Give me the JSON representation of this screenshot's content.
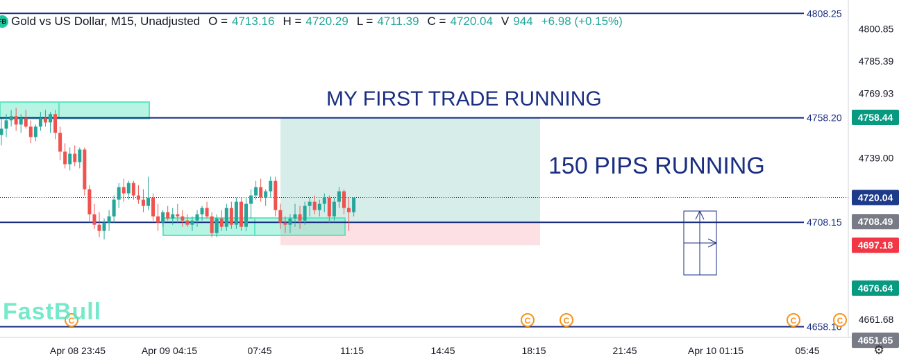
{
  "header": {
    "logo": "FB",
    "title": "Gold vs US Dollar, M15, Unadjusted",
    "o_label": "O =",
    "o": "4713.16",
    "h_label": "H =",
    "h": "4720.29",
    "l_label": "L =",
    "l": "4711.39",
    "c_label": "C =",
    "c": "4720.04",
    "v_label": "V",
    "v": "944",
    "change": "+6.98 (+0.15%)"
  },
  "annotations": {
    "trade": "MY FIRST TRADE RUNNING",
    "pips": "150 PIPS RUNNING"
  },
  "watermark": "FastBull",
  "colors": {
    "up": "#26a69a",
    "down": "#ef5350",
    "level_line": "#1a2e82",
    "profit_zone": "#d6ede9",
    "loss_zone": "#fde0e3",
    "zone_box": "#5fe6c2",
    "last_price_badge": "#1e3b8a",
    "stop_badge": "#f23645",
    "target_badge": "#089981"
  },
  "chart_data": {
    "type": "candlestick",
    "title": "Gold vs US Dollar, M15, Unadjusted",
    "xlabel": "",
    "ylabel": "",
    "ylim": [
      4655,
      4812
    ],
    "grid": false,
    "x_ticks": [
      "Apr 08 23:45",
      "Apr 09 04:15",
      "07:45",
      "11:15",
      "14:45",
      "18:15",
      "21:45",
      "Apr 10 01:15",
      "05:45"
    ],
    "y_ticks": [
      4800.85,
      4785.39,
      4769.93,
      4739.0,
      4661.68
    ],
    "last_price": 4720.04,
    "levels": [
      {
        "label": "4808.25",
        "value": 4808.25
      },
      {
        "label": "4758.20",
        "value": 4758.2
      },
      {
        "label": "4708.15",
        "value": 4708.15
      },
      {
        "label": "4658.10",
        "value": 4658.1
      }
    ],
    "badges": [
      {
        "label": "4758.44",
        "value": 4758.44,
        "kind": "target"
      },
      {
        "label": "4720.04",
        "value": 4720.04,
        "kind": "last"
      },
      {
        "label": "4708.49",
        "value": 4708.49,
        "kind": "gray"
      },
      {
        "label": "4697.18",
        "value": 4697.18,
        "kind": "stop"
      },
      {
        "label": "4676.64",
        "value": 4676.64,
        "kind": "target"
      },
      {
        "label": "4651.65",
        "value": 4651.65,
        "kind": "gray"
      }
    ],
    "position": {
      "entry": 4708.15,
      "target": 4758.2,
      "stop": 4697.18
    },
    "candles": [
      {
        "o": 4750,
        "h": 4758,
        "l": 4745,
        "c": 4753
      },
      {
        "o": 4753,
        "h": 4760,
        "l": 4749,
        "c": 4757
      },
      {
        "o": 4757,
        "h": 4762,
        "l": 4754,
        "c": 4759
      },
      {
        "o": 4759,
        "h": 4763,
        "l": 4752,
        "c": 4755
      },
      {
        "o": 4755,
        "h": 4760,
        "l": 4751,
        "c": 4758
      },
      {
        "o": 4758,
        "h": 4762,
        "l": 4753,
        "c": 4754
      },
      {
        "o": 4754,
        "h": 4757,
        "l": 4746,
        "c": 4749
      },
      {
        "o": 4749,
        "h": 4755,
        "l": 4747,
        "c": 4754
      },
      {
        "o": 4754,
        "h": 4761,
        "l": 4752,
        "c": 4758
      },
      {
        "o": 4758,
        "h": 4762,
        "l": 4754,
        "c": 4756
      },
      {
        "o": 4756,
        "h": 4761,
        "l": 4751,
        "c": 4760
      },
      {
        "o": 4760,
        "h": 4762,
        "l": 4748,
        "c": 4751
      },
      {
        "o": 4751,
        "h": 4754,
        "l": 4738,
        "c": 4742
      },
      {
        "o": 4742,
        "h": 4746,
        "l": 4734,
        "c": 4736
      },
      {
        "o": 4736,
        "h": 4744,
        "l": 4733,
        "c": 4741
      },
      {
        "o": 4741,
        "h": 4745,
        "l": 4735,
        "c": 4737
      },
      {
        "o": 4737,
        "h": 4744,
        "l": 4734,
        "c": 4743
      },
      {
        "o": 4743,
        "h": 4744,
        "l": 4721,
        "c": 4724
      },
      {
        "o": 4724,
        "h": 4726,
        "l": 4708,
        "c": 4712
      },
      {
        "o": 4712,
        "h": 4717,
        "l": 4705,
        "c": 4707
      },
      {
        "o": 4707,
        "h": 4713,
        "l": 4701,
        "c": 4704
      },
      {
        "o": 4704,
        "h": 4710,
        "l": 4700,
        "c": 4708
      },
      {
        "o": 4708,
        "h": 4714,
        "l": 4704,
        "c": 4711
      },
      {
        "o": 4711,
        "h": 4721,
        "l": 4708,
        "c": 4719
      },
      {
        "o": 4719,
        "h": 4727,
        "l": 4715,
        "c": 4725
      },
      {
        "o": 4725,
        "h": 4729,
        "l": 4718,
        "c": 4722
      },
      {
        "o": 4722,
        "h": 4728,
        "l": 4719,
        "c": 4727
      },
      {
        "o": 4727,
        "h": 4728,
        "l": 4719,
        "c": 4721
      },
      {
        "o": 4721,
        "h": 4726,
        "l": 4717,
        "c": 4719
      },
      {
        "o": 4719,
        "h": 4724,
        "l": 4713,
        "c": 4716
      },
      {
        "o": 4716,
        "h": 4730,
        "l": 4714,
        "c": 4720
      },
      {
        "o": 4720,
        "h": 4722,
        "l": 4709,
        "c": 4711
      },
      {
        "o": 4711,
        "h": 4717,
        "l": 4704,
        "c": 4708
      },
      {
        "o": 4708,
        "h": 4714,
        "l": 4706,
        "c": 4713
      },
      {
        "o": 4713,
        "h": 4716,
        "l": 4709,
        "c": 4710
      },
      {
        "o": 4710,
        "h": 4715,
        "l": 4707,
        "c": 4712
      },
      {
        "o": 4712,
        "h": 4717,
        "l": 4708,
        "c": 4711
      },
      {
        "o": 4711,
        "h": 4714,
        "l": 4706,
        "c": 4709
      },
      {
        "o": 4709,
        "h": 4712,
        "l": 4706,
        "c": 4707
      },
      {
        "o": 4707,
        "h": 4711,
        "l": 4704,
        "c": 4709
      },
      {
        "o": 4709,
        "h": 4714,
        "l": 4706,
        "c": 4712
      },
      {
        "o": 4712,
        "h": 4716,
        "l": 4709,
        "c": 4715
      },
      {
        "o": 4715,
        "h": 4718,
        "l": 4710,
        "c": 4711
      },
      {
        "o": 4711,
        "h": 4713,
        "l": 4701,
        "c": 4703
      },
      {
        "o": 4703,
        "h": 4712,
        "l": 4701,
        "c": 4710
      },
      {
        "o": 4710,
        "h": 4714,
        "l": 4704,
        "c": 4706
      },
      {
        "o": 4706,
        "h": 4717,
        "l": 4704,
        "c": 4715
      },
      {
        "o": 4715,
        "h": 4718,
        "l": 4705,
        "c": 4707
      },
      {
        "o": 4707,
        "h": 4720,
        "l": 4705,
        "c": 4718
      },
      {
        "o": 4718,
        "h": 4720,
        "l": 4704,
        "c": 4706
      },
      {
        "o": 4706,
        "h": 4720,
        "l": 4704,
        "c": 4717
      },
      {
        "o": 4717,
        "h": 4724,
        "l": 4710,
        "c": 4721
      },
      {
        "o": 4721,
        "h": 4728,
        "l": 4719,
        "c": 4725
      },
      {
        "o": 4725,
        "h": 4729,
        "l": 4718,
        "c": 4720
      },
      {
        "o": 4720,
        "h": 4724,
        "l": 4716,
        "c": 4723
      },
      {
        "o": 4723,
        "h": 4730,
        "l": 4720,
        "c": 4728
      },
      {
        "o": 4728,
        "h": 4730,
        "l": 4711,
        "c": 4714
      },
      {
        "o": 4714,
        "h": 4717,
        "l": 4705,
        "c": 4708
      },
      {
        "o": 4708,
        "h": 4711,
        "l": 4703,
        "c": 4707
      },
      {
        "o": 4707,
        "h": 4712,
        "l": 4703,
        "c": 4710
      },
      {
        "o": 4710,
        "h": 4717,
        "l": 4706,
        "c": 4712
      },
      {
        "o": 4712,
        "h": 4716,
        "l": 4705,
        "c": 4709
      },
      {
        "o": 4709,
        "h": 4718,
        "l": 4707,
        "c": 4716
      },
      {
        "o": 4716,
        "h": 4720,
        "l": 4711,
        "c": 4718
      },
      {
        "o": 4718,
        "h": 4721,
        "l": 4712,
        "c": 4714
      },
      {
        "o": 4714,
        "h": 4719,
        "l": 4711,
        "c": 4717
      },
      {
        "o": 4717,
        "h": 4722,
        "l": 4713,
        "c": 4720
      },
      {
        "o": 4720,
        "h": 4721,
        "l": 4708,
        "c": 4711
      },
      {
        "o": 4711,
        "h": 4720,
        "l": 4709,
        "c": 4718
      },
      {
        "o": 4718,
        "h": 4725,
        "l": 4715,
        "c": 4723
      },
      {
        "o": 4723,
        "h": 4724,
        "l": 4712,
        "c": 4715
      },
      {
        "o": 4715,
        "h": 4720,
        "l": 4704,
        "c": 4713
      },
      {
        "o": 4713,
        "h": 4720,
        "l": 4711,
        "c": 4720
      }
    ]
  }
}
